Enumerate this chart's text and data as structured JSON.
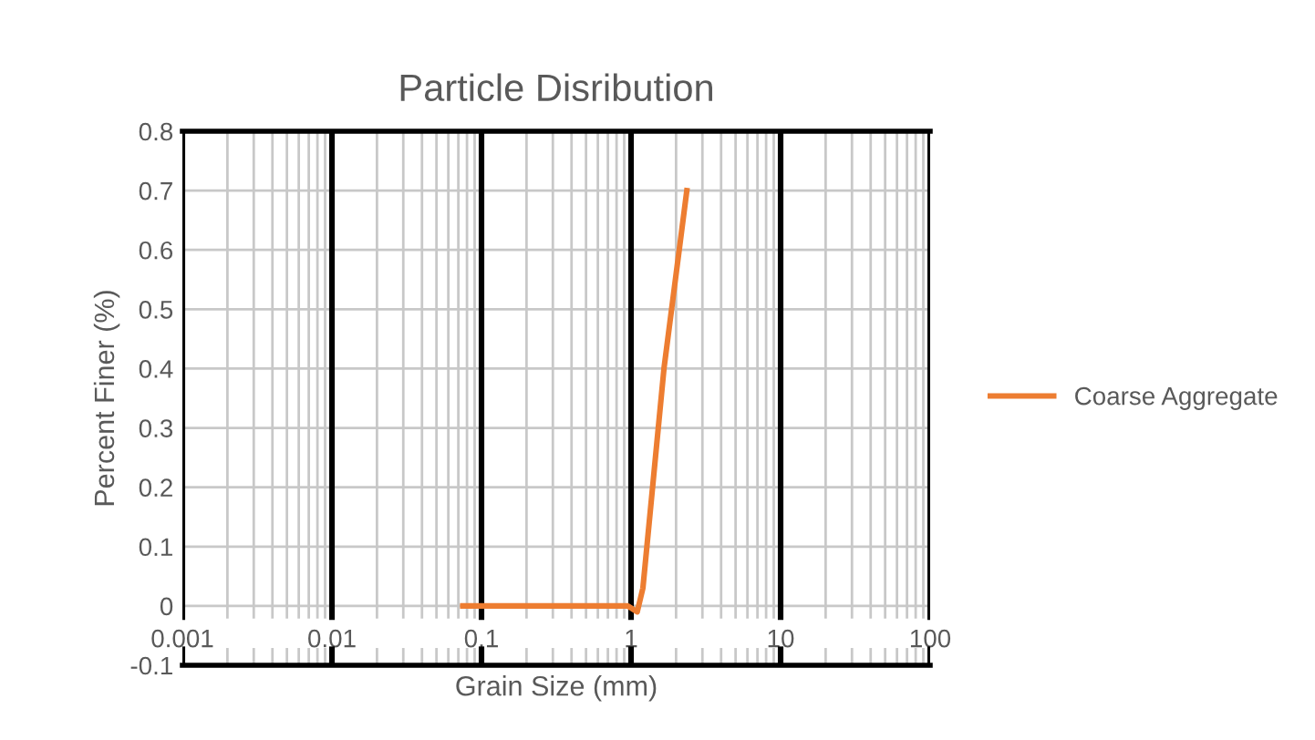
{
  "chart_data": {
    "type": "line",
    "title": "Particle Disribution",
    "xlabel": "Grain Size (mm)",
    "ylabel": "Percent Finer (%)",
    "x": [
      0.075,
      0.95,
      1.1,
      1.2,
      1.66,
      2.36
    ],
    "series": [
      {
        "name": "Coarse Aggregate",
        "color": "#ed7d31",
        "values": [
          0,
          0,
          -0.01,
          0.03,
          0.4,
          0.7
        ]
      }
    ],
    "log": "x",
    "xlim": [
      0.001,
      100
    ],
    "xticks": [
      0.001,
      0.01,
      0.1,
      1,
      10,
      100
    ],
    "ylim": [
      -0.1,
      0.8
    ],
    "yticks": [
      -0.1,
      0,
      0.1,
      0.2,
      0.3,
      0.4,
      0.5,
      0.6,
      0.7,
      0.8
    ],
    "grid": true,
    "legend": "right",
    "marker": "none",
    "line_style": "solid"
  }
}
